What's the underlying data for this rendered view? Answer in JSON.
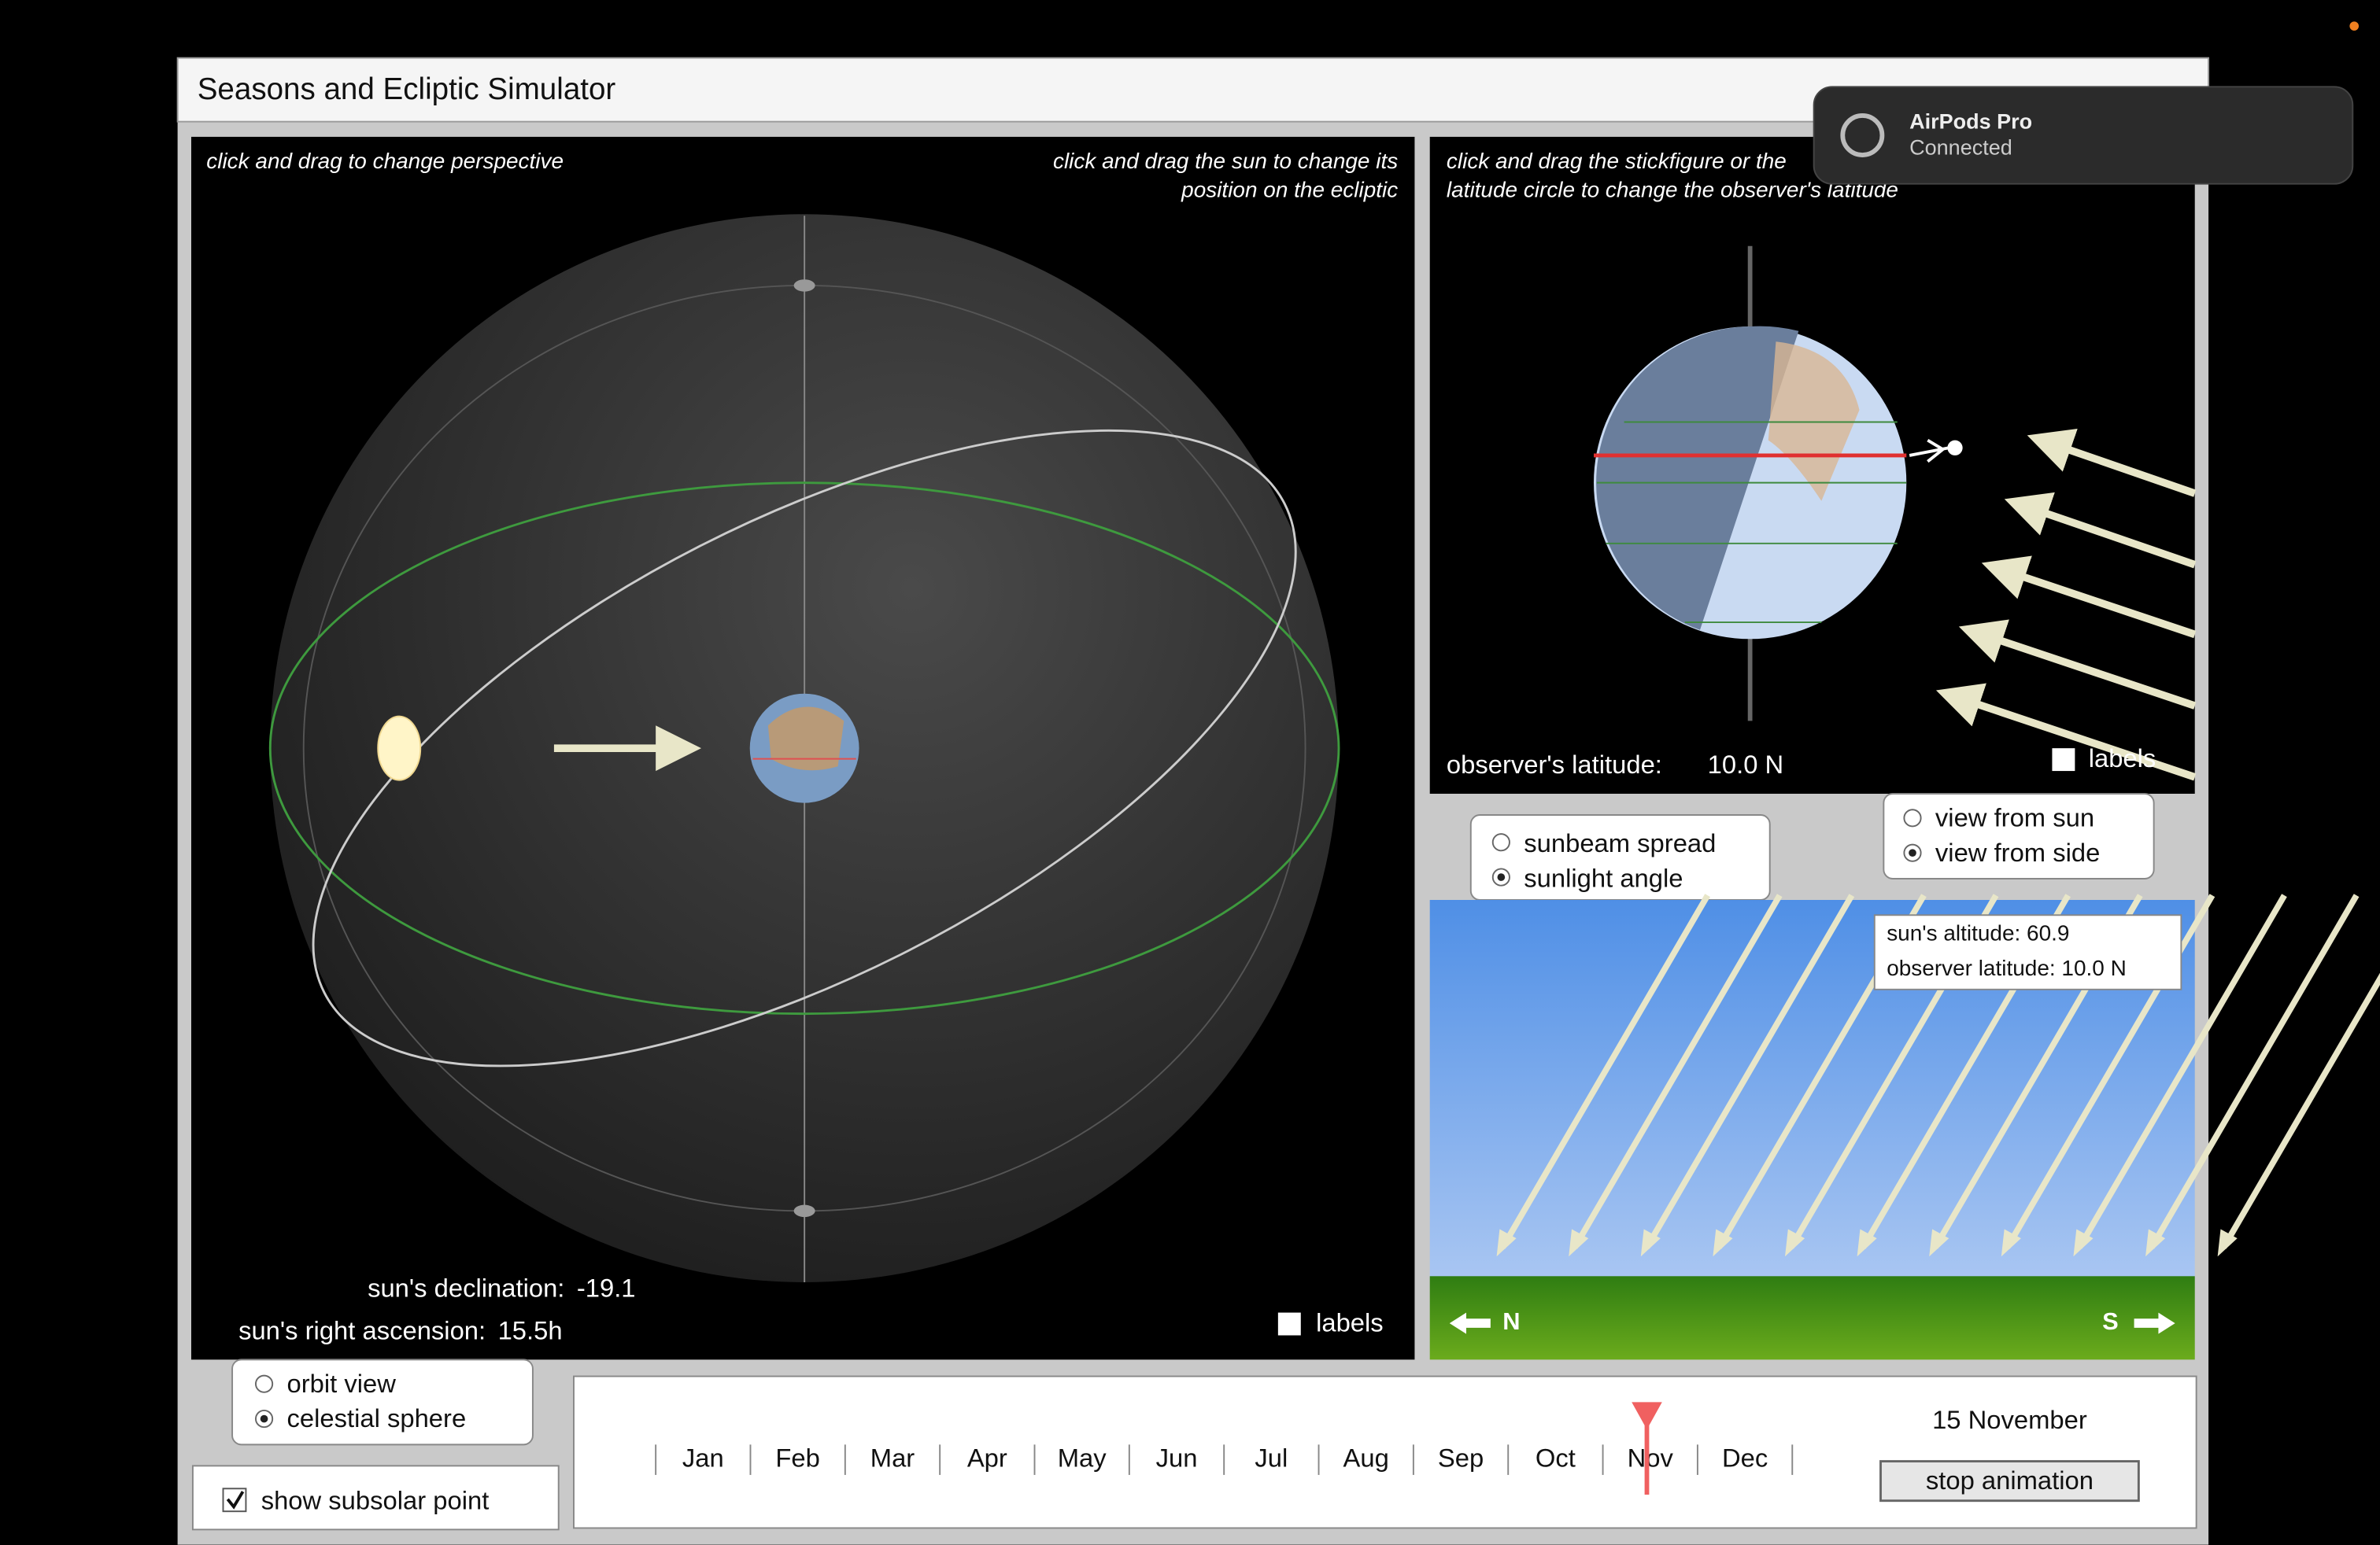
{
  "window": {
    "title": "Seasons and Ecliptic Simulator"
  },
  "notification": {
    "title": "AirPods Pro",
    "status": "Connected"
  },
  "celestial_panel": {
    "hint_left": "click and drag to change perspective",
    "hint_right": [
      "click and drag the sun to change its",
      "position on the ecliptic"
    ],
    "declination_label": "sun's declination:",
    "declination": "-19.1",
    "right_ascension_label": "sun's right ascension:",
    "right_ascension": "15.5h",
    "labels_checkbox": "labels"
  },
  "earth_panel": {
    "hint": [
      "click and drag the stickfigure or the",
      "latitude circle to change the observer's latitude"
    ],
    "latitude_label": "observer's latitude:",
    "latitude": "10.0 N",
    "labels_checkbox": "labels"
  },
  "view_options": [
    "view from sun",
    "view from side"
  ],
  "mode_options": [
    "sunbeam spread",
    "sunlight angle"
  ],
  "sunlight_panel": {
    "altitude": "sun's altitude: 60.9",
    "latitude": "observer latitude: 10.0 N",
    "north": "N",
    "south": "S"
  },
  "perspective_options": [
    "orbit view",
    "celestial sphere"
  ],
  "subsolar_checkbox": "show subsolar point",
  "timeline": {
    "months": [
      "Jan",
      "Feb",
      "Mar",
      "Apr",
      "May",
      "Jun",
      "Jul",
      "Aug",
      "Sep",
      "Oct",
      "Nov",
      "Dec"
    ],
    "date": "15 November",
    "button": "stop animation"
  }
}
